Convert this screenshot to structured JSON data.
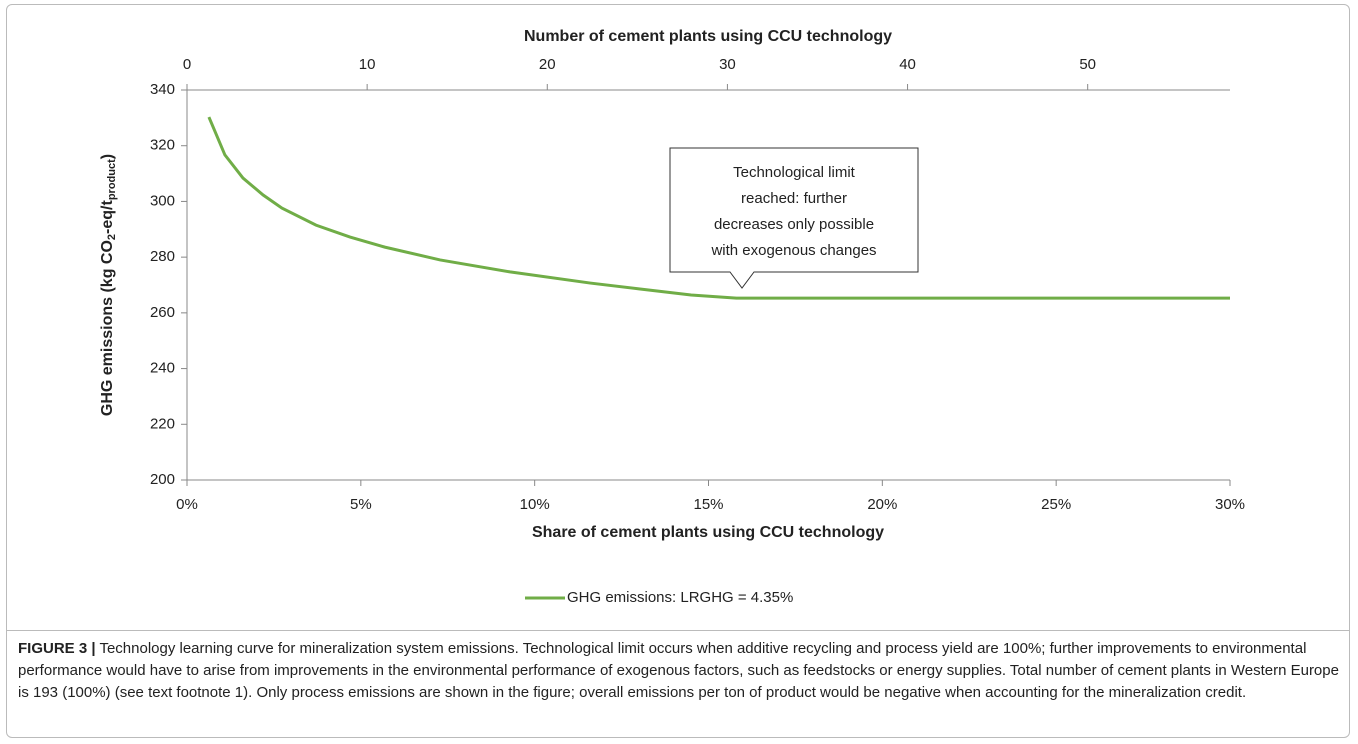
{
  "chart_data": {
    "type": "line",
    "top_axis_label": "Number of cement plants using CCU technology",
    "x_label": "Share of cement plants using CCU technology",
    "y_label_parts": [
      "GHG emissions (kg CO",
      "2",
      "-eq/t",
      "product",
      ")"
    ],
    "annotation_lines": [
      "Technological limit",
      "reached: further",
      "decreases only possible",
      "with exogenous changes"
    ],
    "x": [
      0.63,
      1.09,
      1.61,
      2.19,
      2.73,
      3.71,
      4.69,
      5.69,
      7.28,
      9.29,
      11.6,
      13.0,
      14.5,
      15.8,
      30
    ],
    "series": [
      {
        "name": "GHG emissions: LRGHG = 4.35%",
        "color": "#70ad47",
        "values": [
          330.3,
          316.7,
          308.4,
          302.3,
          297.6,
          291.5,
          287.2,
          283.6,
          279,
          274.7,
          270.7,
          268.6,
          266.4,
          265.3,
          265.3
        ]
      }
    ],
    "xlim": [
      0,
      30
    ],
    "xticks": [
      {
        "value": 0,
        "label": "0%"
      },
      {
        "value": 5,
        "label": "5%"
      },
      {
        "value": 10,
        "label": "10%"
      },
      {
        "value": 15,
        "label": "15%"
      },
      {
        "value": 20,
        "label": "20%"
      },
      {
        "value": 25,
        "label": "25%"
      },
      {
        "value": 30,
        "label": "30%"
      }
    ],
    "x2lim": [
      0,
      57.9
    ],
    "x2ticks": [
      0,
      10,
      20,
      30,
      40,
      50
    ],
    "ylim": [
      200,
      340
    ],
    "yticks": [
      200,
      220,
      240,
      260,
      280,
      300,
      320,
      340
    ],
    "grid": false
  },
  "caption": {
    "label": "FIGURE 3 |",
    "text": " Technology learning curve for mineralization system emissions. Technological limit occurs when additive recycling and process yield are 100%; further improvements to environmental performance would have to arise from improvements in the environmental performance of exogenous factors, such as feedstocks or energy supplies. Total number of cement plants in Western Europe is 193 (100%) (see text footnote 1). Only process emissions are shown in the figure; overall emissions per ton of product would be negative when accounting for the mineralization credit."
  }
}
